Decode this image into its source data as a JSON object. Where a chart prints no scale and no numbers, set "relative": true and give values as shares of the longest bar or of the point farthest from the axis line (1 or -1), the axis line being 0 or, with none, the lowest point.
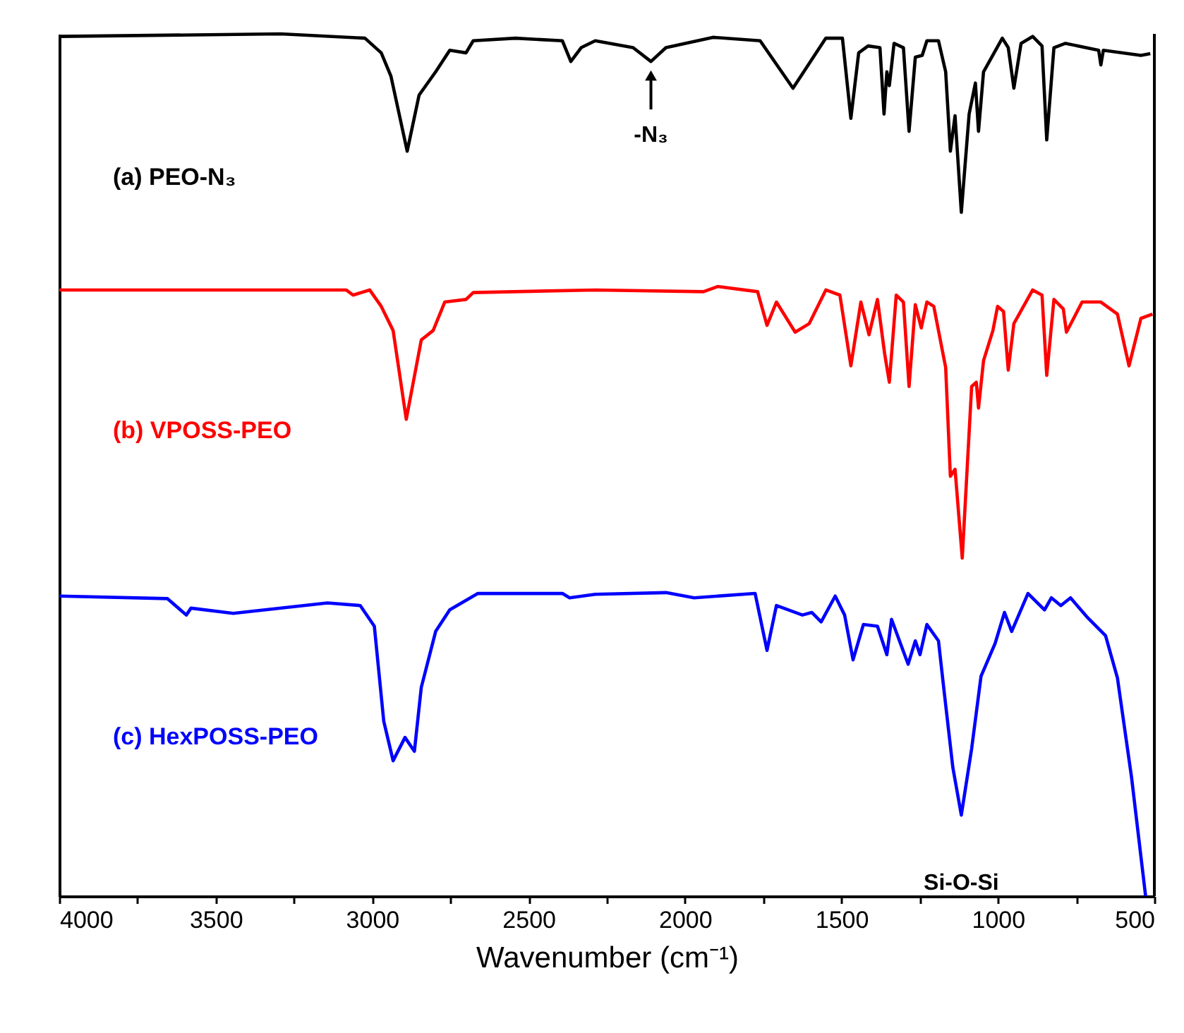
{
  "chart_data": {
    "type": "line",
    "relative": true,
    "xlabel": "Wavenumber (cm⁻¹)",
    "xlim": [
      4000,
      500
    ],
    "xticks": [
      4000,
      {
        "value": 3750,
        "label": null
      },
      3500,
      {
        "value": 3250,
        "label": null
      },
      3000,
      {
        "value": 2750,
        "label": null
      },
      2500,
      {
        "value": 2250,
        "label": null
      },
      2000,
      {
        "value": 1750,
        "label": null
      },
      1500,
      {
        "value": 1250,
        "label": null
      },
      1000,
      {
        "value": 750,
        "label": null
      },
      500
    ],
    "grid": false,
    "marker": "none",
    "line_style": "solid",
    "annotations": [
      {
        "text": "-N₃",
        "x": 2109,
        "y": 0.968
      },
      {
        "text": "Si-O-Si",
        "x": 1117,
        "y": 0.094
      }
    ],
    "series": [
      {
        "name": "(a) PEO-N₃",
        "color": "#000000",
        "x": [
          4000,
          3293,
          3023,
          2971,
          2940,
          2888,
          2850,
          2797,
          2752,
          2700,
          2677,
          2542,
          2392,
          2365,
          2332,
          2287,
          2166,
          2109,
          2061,
          1911,
          1760,
          1655,
          1550,
          1497,
          1470,
          1445,
          1415,
          1377,
          1364,
          1355,
          1347,
          1332,
          1302,
          1284,
          1264,
          1242,
          1227,
          1190,
          1167,
          1152,
          1137,
          1117,
          1092,
          1072,
          1062,
          1046,
          986,
          967,
          949,
          926,
          889,
          859,
          844,
          821,
          784,
          678,
          671,
          663,
          543,
          513
        ],
        "values": [
          0.997,
          1.0,
          0.995,
          0.978,
          0.951,
          0.864,
          0.929,
          0.956,
          0.981,
          0.978,
          0.992,
          0.995,
          0.992,
          0.968,
          0.984,
          0.992,
          0.984,
          0.968,
          0.984,
          0.996,
          0.992,
          0.937,
          0.995,
          0.995,
          0.902,
          0.978,
          0.986,
          0.984,
          0.907,
          0.956,
          0.94,
          0.989,
          0.984,
          0.887,
          0.973,
          0.975,
          0.992,
          0.992,
          0.956,
          0.864,
          0.905,
          0.793,
          0.907,
          0.943,
          0.887,
          0.956,
          0.995,
          0.984,
          0.937,
          0.989,
          0.997,
          0.986,
          0.877,
          0.984,
          0.989,
          0.981,
          0.964,
          0.981,
          0.975,
          0.977
        ]
      },
      {
        "name": "(b) VPOSS-PEO",
        "color": "#ff0000",
        "x": [
          4000,
          3083,
          3061,
          3008,
          2971,
          2933,
          2891,
          2843,
          2805,
          2768,
          2700,
          2677,
          2287,
          1941,
          1896,
          1768,
          1738,
          1708,
          1648,
          1603,
          1550,
          1505,
          1470,
          1438,
          1412,
          1385,
          1362,
          1347,
          1325,
          1302,
          1284,
          1264,
          1245,
          1227,
          1205,
          1167,
          1152,
          1137,
          1114,
          1084,
          1069,
          1062,
          1046,
          1016,
          1001,
          982,
          967,
          949,
          889,
          859,
          844,
          821,
          791,
          781,
          731,
          671,
          618,
          581,
          543,
          506
        ],
        "values": [
          0.703,
          0.703,
          0.697,
          0.703,
          0.684,
          0.656,
          0.553,
          0.645,
          0.656,
          0.689,
          0.692,
          0.7,
          0.703,
          0.701,
          0.707,
          0.701,
          0.662,
          0.689,
          0.654,
          0.664,
          0.703,
          0.697,
          0.615,
          0.689,
          0.651,
          0.692,
          0.629,
          0.596,
          0.697,
          0.689,
          0.591,
          0.686,
          0.659,
          0.689,
          0.684,
          0.613,
          0.487,
          0.495,
          0.392,
          0.591,
          0.596,
          0.566,
          0.621,
          0.656,
          0.684,
          0.678,
          0.61,
          0.664,
          0.703,
          0.697,
          0.604,
          0.692,
          0.681,
          0.654,
          0.689,
          0.689,
          0.675,
          0.615,
          0.67,
          0.675
        ]
      },
      {
        "name": "(c) HexPOSS-PEO",
        "color": "#0000ff",
        "x": [
          4000,
          3654,
          3594,
          3579,
          3444,
          3143,
          3038,
          2993,
          2963,
          2933,
          2895,
          2865,
          2843,
          2797,
          2752,
          2662,
          2392,
          2369,
          2287,
          2061,
          1971,
          1776,
          1738,
          1708,
          1625,
          1595,
          1565,
          1520,
          1490,
          1463,
          1430,
          1385,
          1355,
          1340,
          1287,
          1264,
          1249,
          1227,
          1190,
          1174,
          1144,
          1117,
          1084,
          1054,
          1009,
          979,
          956,
          904,
          851,
          829,
          799,
          768,
          716,
          656,
          618,
          573,
          528
        ],
        "values": [
          0.348,
          0.345,
          0.326,
          0.334,
          0.328,
          0.34,
          0.337,
          0.313,
          0.203,
          0.157,
          0.184,
          0.168,
          0.242,
          0.307,
          0.332,
          0.351,
          0.351,
          0.346,
          0.35,
          0.352,
          0.346,
          0.351,
          0.285,
          0.337,
          0.326,
          0.329,
          0.318,
          0.348,
          0.326,
          0.274,
          0.315,
          0.313,
          0.28,
          0.321,
          0.269,
          0.296,
          0.28,
          0.315,
          0.296,
          0.244,
          0.149,
          0.094,
          0.171,
          0.255,
          0.293,
          0.329,
          0.307,
          0.351,
          0.332,
          0.346,
          0.337,
          0.346,
          0.324,
          0.302,
          0.253,
          0.138,
          0
        ]
      }
    ]
  }
}
